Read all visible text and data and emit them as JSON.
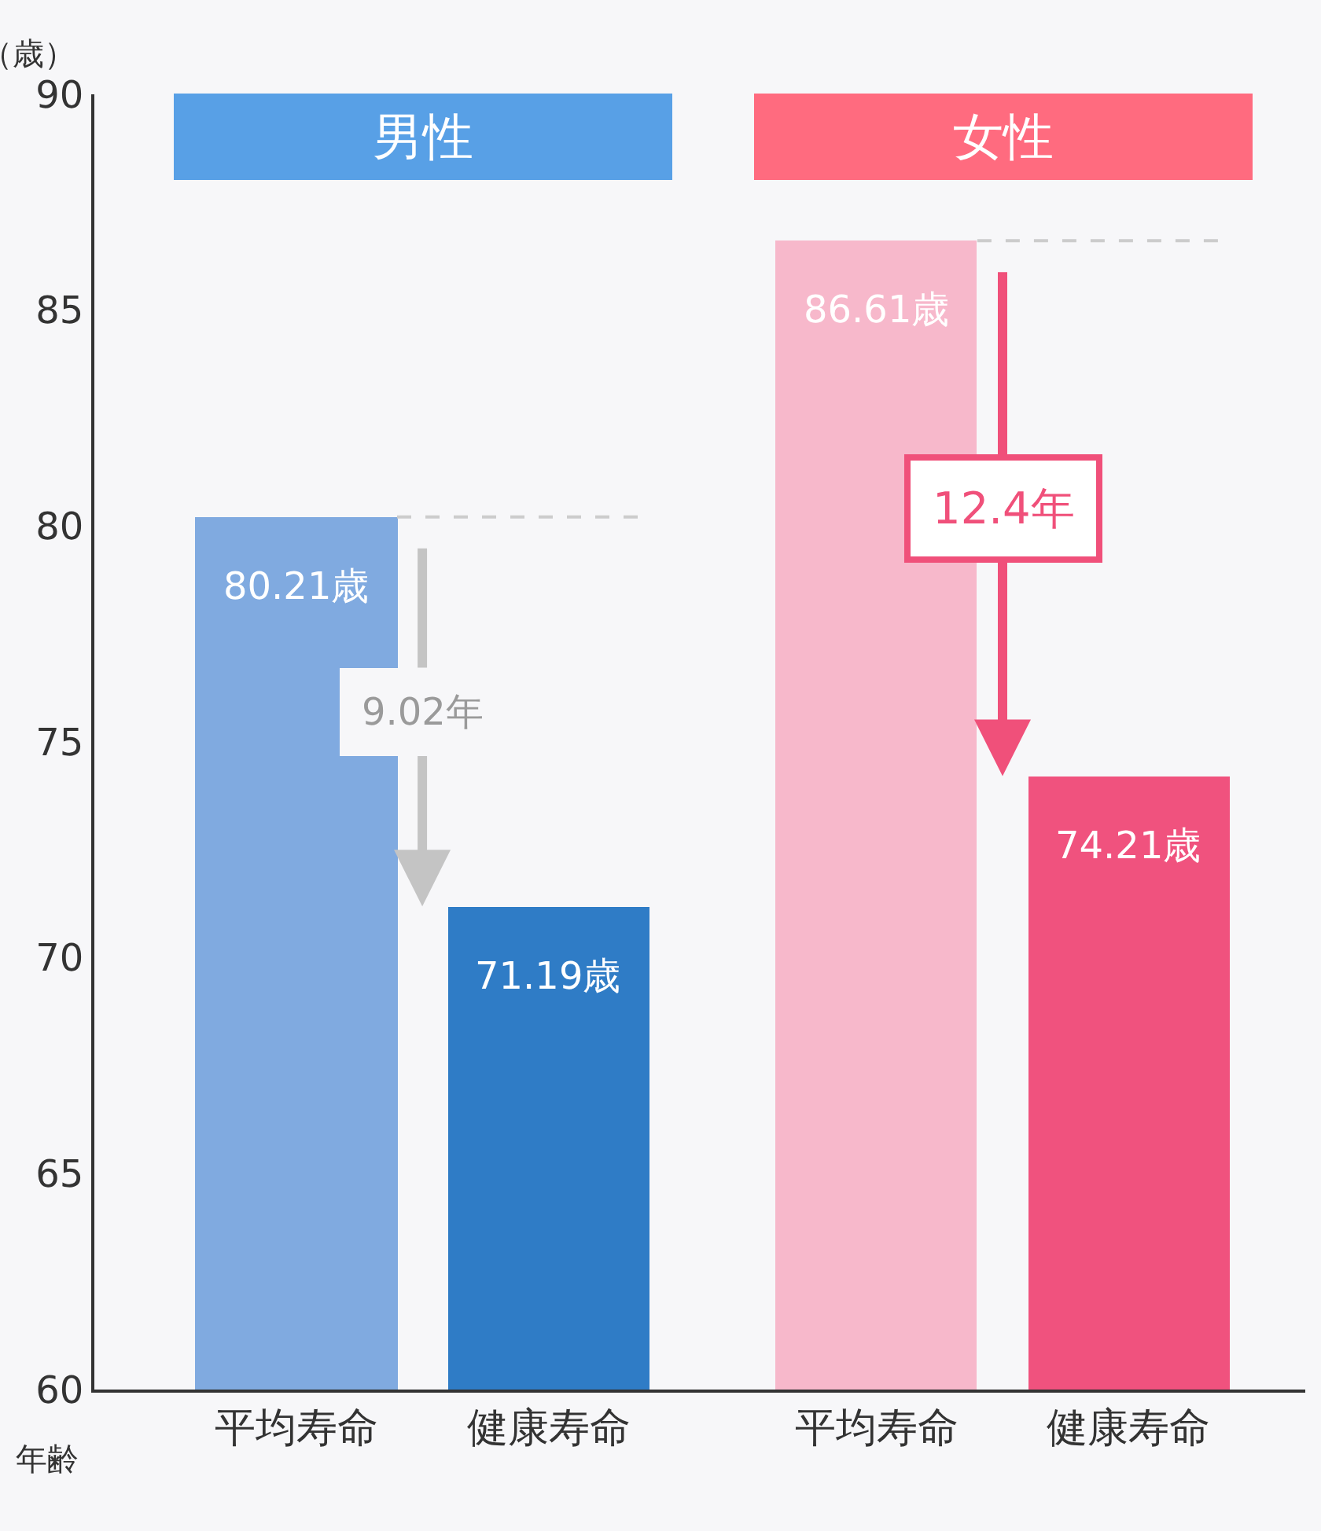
{
  "chart_data": {
    "type": "bar",
    "categories": [
      "平均寿命",
      "健康寿命",
      "平均寿命",
      "健康寿命"
    ],
    "values": [
      80.21,
      71.19,
      86.61,
      74.21
    ],
    "colors": [
      "#80aae0",
      "#2f7cc6",
      "#f7b8cb",
      "#f0527e"
    ],
    "value_labels": [
      "80.21歳",
      "71.19歳",
      "86.61歳",
      "74.21歳"
    ],
    "ylim": [
      60,
      90
    ],
    "yticks": [
      60,
      65,
      70,
      75,
      80,
      85,
      90
    ],
    "ylabel": "（歳）",
    "xlabel": "年齢",
    "grid": false,
    "ref_lines": [
      {
        "axis": "y",
        "value": 80.21,
        "color": "#cccccc",
        "line_style": "dashed"
      },
      {
        "axis": "y",
        "value": 86.61,
        "color": "#cccccc",
        "line_style": "dashed"
      }
    ],
    "annotations": [
      "男性",
      "女性",
      {
        "text": "9.02年",
        "y": 80.21
      },
      {
        "text": "12.4年",
        "y": 86.61
      }
    ]
  }
}
